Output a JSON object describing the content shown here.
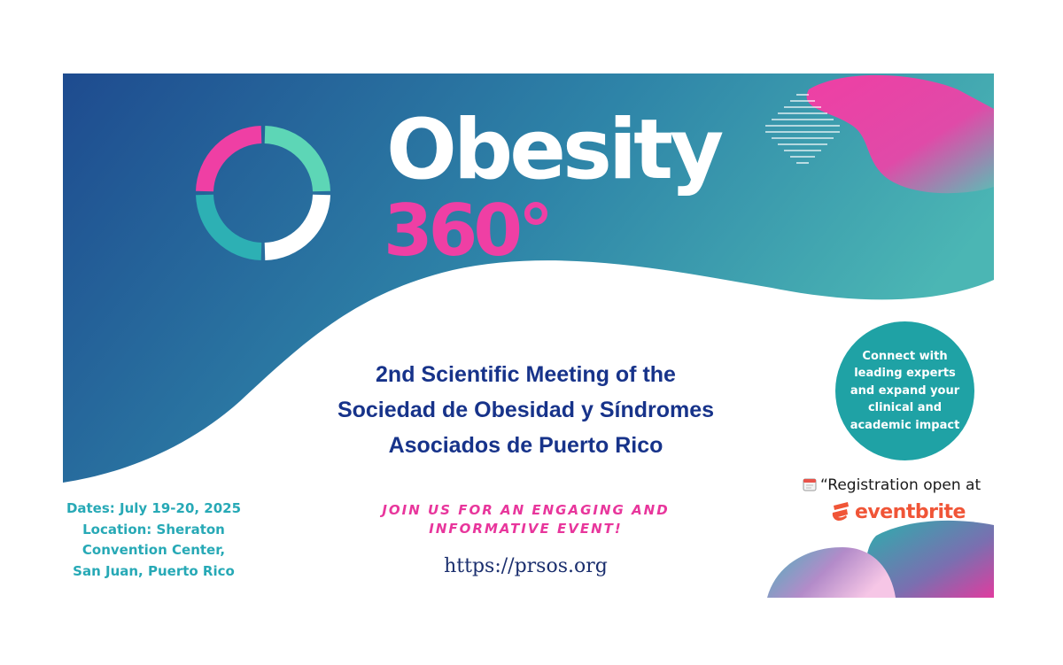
{
  "banner": {
    "title_word": "Obesity",
    "title_number": "360°",
    "meeting_lines": [
      "2nd Scientific Meeting of the",
      "Sociedad de Obesidad y Síndromes",
      "Asociados de Puerto Rico"
    ],
    "join_lines": [
      "JOIN US FOR AN ENGAGING AND",
      "INFORMATIVE EVENT!"
    ],
    "url": "https://prsos.org",
    "event_info_lines": [
      "Dates: July 19-20, 2025",
      "Location: Sheraton",
      "Convention Center,",
      "San Juan, Puerto Rico"
    ],
    "badge_text": "Connect with leading experts and expand your clinical and academic impact",
    "registration_text": "“Registration open at",
    "registration_icon": "calendar-icon",
    "eventbrite_text": "eventbrite",
    "eventbrite_icon": "eventbrite-logo-icon"
  },
  "colors": {
    "navy": "#1e4b8f",
    "teal": "#41b2b3",
    "magenta": "#ef3fa4",
    "badge_teal": "#1fa2a5",
    "heading_blue": "#17338a",
    "eventbrite_orange": "#f05537"
  }
}
